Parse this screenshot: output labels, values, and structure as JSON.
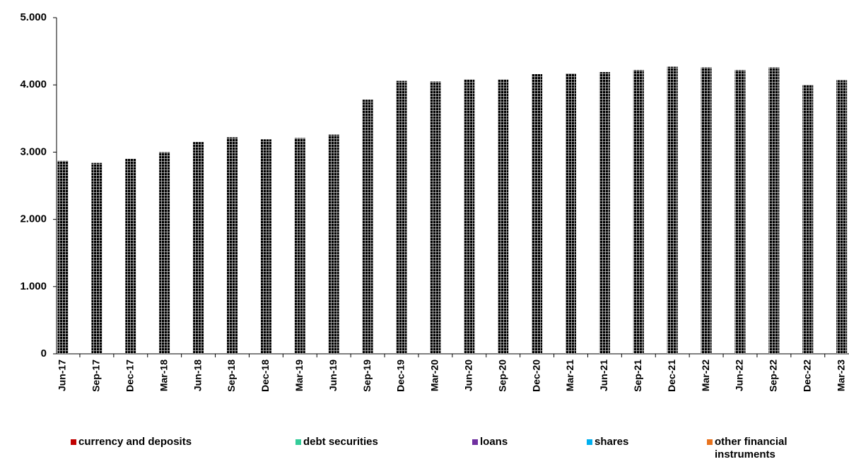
{
  "chart_data": {
    "type": "stacked_bar",
    "categories": [
      "Jun-17",
      "Sep-17",
      "Dec-17",
      "Mar-18",
      "Jun-18",
      "Sep-18",
      "Dec-18",
      "Mar-19",
      "Jun-19",
      "Sep-19",
      "Dec-19",
      "Mar-20",
      "Jun-20",
      "Sep-20",
      "Dec-20",
      "Mar-21",
      "Jun-21",
      "Sep-21",
      "Dec-21",
      "Mar-22",
      "Jun-22",
      "Sep-22",
      "Dec-22",
      "Mar-23"
    ],
    "series": [
      {
        "name": "currency and deposits",
        "color": "#c00000",
        "values": [
          0,
          0,
          0,
          0,
          0,
          0,
          0,
          0,
          0,
          0,
          0,
          0,
          0,
          0,
          0,
          0,
          0,
          0,
          0,
          0,
          0,
          0,
          0,
          0
        ]
      },
      {
        "name": "debt securities",
        "color": "#33cc99",
        "values": [
          0,
          0,
          0,
          0,
          0,
          0,
          0,
          0,
          0,
          0,
          0,
          0,
          0,
          0,
          0,
          0,
          0,
          0,
          0,
          0,
          0,
          0,
          0,
          0
        ]
      },
      {
        "name": "loans",
        "color": "#7030a0",
        "values": [
          0,
          0,
          0,
          0,
          0,
          0,
          0,
          0,
          0,
          0,
          0,
          0,
          0,
          0,
          0,
          0,
          0,
          0,
          0,
          0,
          0,
          0,
          0,
          0
        ]
      },
      {
        "name": "shares",
        "color": "#00b0f0",
        "values": [
          0,
          0,
          0,
          0,
          0,
          0,
          0,
          0,
          0,
          0,
          0,
          0,
          0,
          0,
          0,
          0,
          0,
          0,
          0,
          0,
          0,
          0,
          0,
          0
        ]
      },
      {
        "name": "other financial instruments",
        "color": "#e8731e",
        "values": [
          2870,
          2840,
          2900,
          3000,
          3150,
          3220,
          3190,
          3210,
          3260,
          3780,
          4060,
          4050,
          4080,
          4080,
          4160,
          4170,
          4190,
          4220,
          4270,
          4260,
          4220,
          4260,
          4000,
          4070
        ]
      }
    ],
    "ylim": [
      0,
      5000
    ],
    "yticks": [
      0,
      {
        "value": 1000,
        "label": "1.000"
      },
      {
        "value": 2000,
        "label": "2.000"
      },
      {
        "value": 3000,
        "label": "3.000"
      },
      {
        "value": 4000,
        "label": "4.000"
      },
      {
        "value": 5000,
        "label": "5.000"
      }
    ]
  }
}
